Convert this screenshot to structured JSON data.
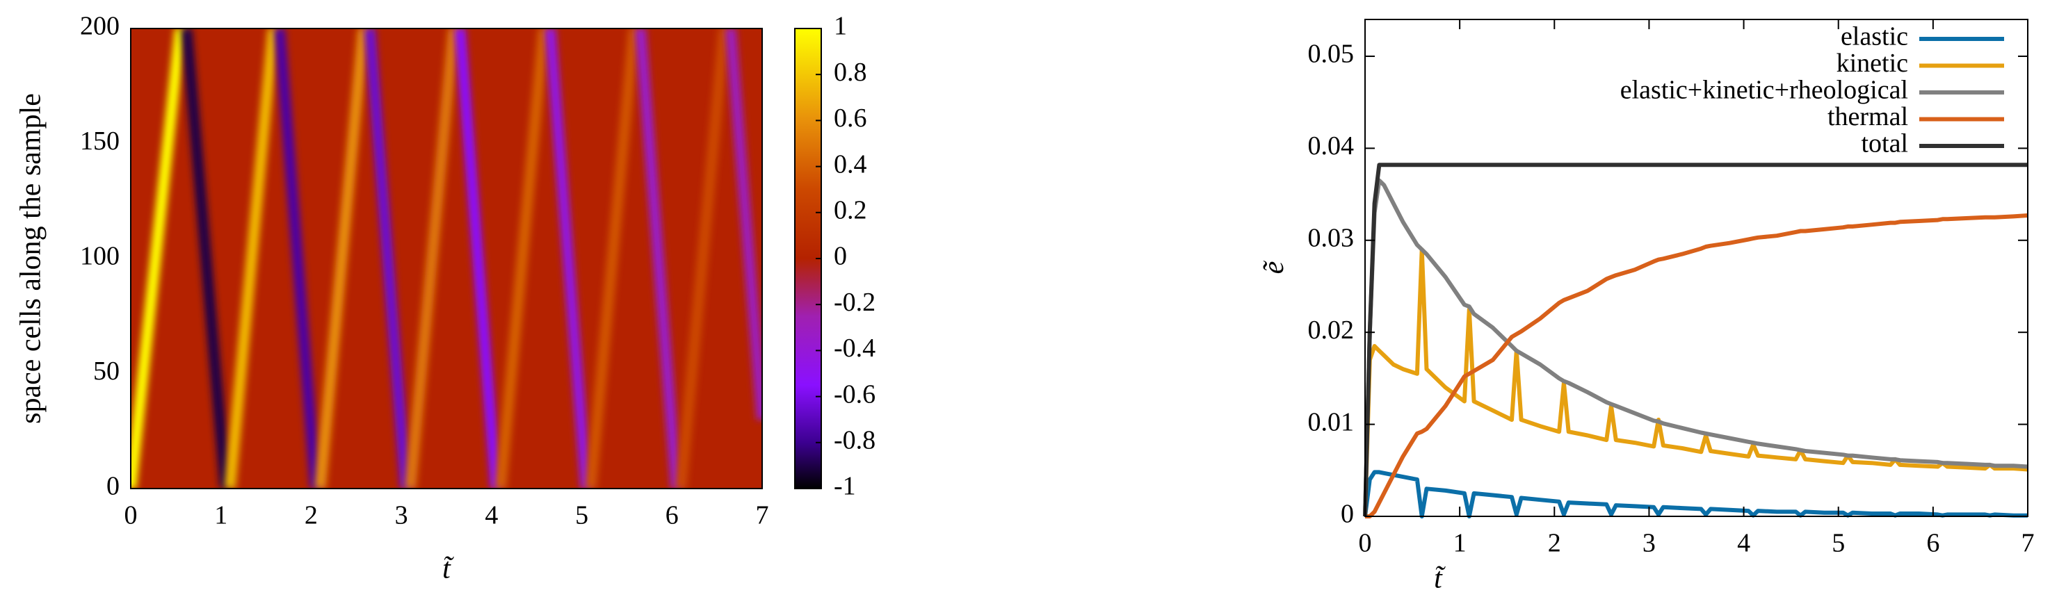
{
  "chart_data": [
    {
      "type": "heatmap",
      "xlabel": "t̃",
      "ylabel": "space cells along the sample",
      "xlim": [
        0,
        7
      ],
      "ylim": [
        0,
        200
      ],
      "xticks": [
        0,
        1,
        2,
        3,
        4,
        5,
        6,
        7
      ],
      "yticks": [
        0,
        50,
        100,
        150,
        200
      ],
      "clim": [
        -1,
        1
      ],
      "cticks": [
        -1,
        -0.8,
        -0.6,
        -0.4,
        -0.2,
        0,
        0.2,
        0.4,
        0.6,
        0.8,
        1
      ],
      "colormap": [
        {
          "value": -1,
          "color": "#000000"
        },
        {
          "value": -0.8,
          "color": "#3c0090"
        },
        {
          "value": -0.55,
          "color": "#8a10ff"
        },
        {
          "value": -0.25,
          "color": "#a020b0"
        },
        {
          "value": 0,
          "color": "#b42200"
        },
        {
          "value": 0.3,
          "color": "#cc4800"
        },
        {
          "value": 0.6,
          "color": "#e8900a"
        },
        {
          "value": 1,
          "color": "#ffff00"
        }
      ],
      "background_value": 0,
      "fronts": [
        {
          "x": [
            0,
            0.55
          ],
          "y": [
            0,
            200
          ],
          "value": 1
        },
        {
          "x": [
            0.62,
            1.05
          ],
          "y": [
            200,
            0
          ],
          "value": -0.9
        },
        {
          "x": [
            1.1,
            1.58
          ],
          "y": [
            0,
            200
          ],
          "value": 0.75
        },
        {
          "x": [
            1.65,
            2.05
          ],
          "y": [
            200,
            0
          ],
          "value": -0.75
        },
        {
          "x": [
            2.1,
            2.58
          ],
          "y": [
            0,
            200
          ],
          "value": 0.6
        },
        {
          "x": [
            2.65,
            3.05
          ],
          "y": [
            200,
            0
          ],
          "value": -0.65
        },
        {
          "x": [
            3.1,
            3.58
          ],
          "y": [
            0,
            200
          ],
          "value": 0.5
        },
        {
          "x": [
            3.65,
            4.05
          ],
          "y": [
            200,
            0
          ],
          "value": -0.55
        },
        {
          "x": [
            4.1,
            4.58
          ],
          "y": [
            0,
            200
          ],
          "value": 0.4
        },
        {
          "x": [
            4.65,
            5.05
          ],
          "y": [
            200,
            0
          ],
          "value": -0.45
        },
        {
          "x": [
            5.1,
            5.58
          ],
          "y": [
            0,
            200
          ],
          "value": 0.35
        },
        {
          "x": [
            5.65,
            6.05
          ],
          "y": [
            200,
            0
          ],
          "value": -0.35
        },
        {
          "x": [
            6.1,
            6.58
          ],
          "y": [
            0,
            200
          ],
          "value": 0.3
        },
        {
          "x": [
            6.65,
            7.0
          ],
          "y": [
            200,
            30
          ],
          "value": -0.3
        }
      ]
    },
    {
      "type": "line",
      "xlabel": "t̃",
      "ylabel": "ẽ",
      "xlim": [
        0,
        7
      ],
      "ylim": [
        0,
        0.054
      ],
      "xticks": [
        0,
        1,
        2,
        3,
        4,
        5,
        6,
        7
      ],
      "yticks": [
        0,
        0.01,
        0.02,
        0.03,
        0.04,
        0.05
      ],
      "legend": "top right",
      "x": [
        0,
        0.05,
        0.1,
        0.15,
        0.2,
        0.3,
        0.4,
        0.55,
        0.6,
        0.65,
        0.85,
        1.05,
        1.1,
        1.15,
        1.35,
        1.55,
        1.6,
        1.65,
        1.85,
        2.05,
        2.1,
        2.15,
        2.35,
        2.55,
        2.6,
        2.65,
        2.85,
        3.05,
        3.1,
        3.15,
        3.35,
        3.55,
        3.6,
        3.65,
        3.85,
        4.05,
        4.1,
        4.15,
        4.35,
        4.55,
        4.6,
        4.65,
        4.85,
        5.05,
        5.1,
        5.15,
        5.35,
        5.55,
        5.6,
        5.65,
        5.85,
        6.05,
        6.1,
        6.15,
        6.35,
        6.55,
        6.6,
        6.65,
        6.85,
        7.0
      ],
      "series": [
        {
          "name": "elastic",
          "color": "#0b6fa8",
          "values": [
            0,
            0.004,
            0.0048,
            0.0048,
            0.0047,
            0.0045,
            0.0043,
            0.004,
            0,
            0.003,
            0.0028,
            0.0025,
            0,
            0.0025,
            0.0023,
            0.0021,
            0.0002,
            0.002,
            0.0018,
            0.0016,
            0.0002,
            0.0015,
            0.0014,
            0.0013,
            0.0002,
            0.0012,
            0.0011,
            0.001,
            0.0002,
            0.001,
            0.0009,
            0.0008,
            0.0002,
            0.0008,
            0.0007,
            0.0006,
            0.0001,
            0.0006,
            0.0005,
            0.0005,
            0.0001,
            0.0005,
            0.0004,
            0.0004,
            0.0001,
            0.0004,
            0.0003,
            0.0003,
            0.0001,
            0.0003,
            0.0003,
            0.0002,
            0.0001,
            0.0002,
            0.0002,
            0.0002,
            0.0001,
            0.0002,
            0.0001,
            0.0001
          ]
        },
        {
          "name": "kinetic",
          "color": "#e6a010",
          "values": [
            0,
            0.017,
            0.0185,
            0.018,
            0.0175,
            0.0165,
            0.016,
            0.0155,
            0.029,
            0.016,
            0.014,
            0.0125,
            0.0225,
            0.0125,
            0.0115,
            0.0105,
            0.018,
            0.0105,
            0.0098,
            0.0092,
            0.0145,
            0.0092,
            0.0088,
            0.0083,
            0.012,
            0.0083,
            0.008,
            0.0076,
            0.0105,
            0.0077,
            0.0074,
            0.007,
            0.0088,
            0.0071,
            0.0068,
            0.0065,
            0.0078,
            0.0066,
            0.0064,
            0.0062,
            0.0072,
            0.0062,
            0.006,
            0.0058,
            0.0066,
            0.0059,
            0.0058,
            0.0056,
            0.0062,
            0.0056,
            0.0055,
            0.0054,
            0.0058,
            0.0054,
            0.0053,
            0.0052,
            0.0056,
            0.0052,
            0.0052,
            0.0051
          ]
        },
        {
          "name": "elastic+kinetic+rheological",
          "color": "#808080",
          "values": [
            0,
            0.02,
            0.033,
            0.0365,
            0.036,
            0.034,
            0.032,
            0.0295,
            0.029,
            0.0285,
            0.026,
            0.023,
            0.0228,
            0.022,
            0.0205,
            0.0185,
            0.018,
            0.0177,
            0.0165,
            0.015,
            0.0147,
            0.0145,
            0.0135,
            0.0124,
            0.0122,
            0.012,
            0.0112,
            0.0104,
            0.0103,
            0.0101,
            0.0096,
            0.0091,
            0.009,
            0.0089,
            0.0085,
            0.0081,
            0.008,
            0.0079,
            0.0076,
            0.0073,
            0.0072,
            0.0071,
            0.0069,
            0.0067,
            0.0066,
            0.0066,
            0.0064,
            0.0062,
            0.0062,
            0.0061,
            0.006,
            0.0059,
            0.0058,
            0.0058,
            0.0057,
            0.0056,
            0.0056,
            0.0055,
            0.0055,
            0.0054
          ]
        },
        {
          "name": "thermal",
          "color": "#d8601a",
          "values": [
            0,
            0,
            0.0005,
            0.0015,
            0.0025,
            0.0045,
            0.0065,
            0.009,
            0.0092,
            0.0095,
            0.012,
            0.0152,
            0.0155,
            0.0158,
            0.017,
            0.0195,
            0.0198,
            0.0201,
            0.0215,
            0.0232,
            0.0235,
            0.0237,
            0.0245,
            0.0258,
            0.026,
            0.0262,
            0.0268,
            0.0277,
            0.0279,
            0.028,
            0.0285,
            0.0291,
            0.0293,
            0.0294,
            0.0297,
            0.0301,
            0.0302,
            0.0303,
            0.0305,
            0.0309,
            0.031,
            0.031,
            0.0312,
            0.0314,
            0.0315,
            0.0315,
            0.0317,
            0.0319,
            0.0319,
            0.032,
            0.0321,
            0.0322,
            0.0323,
            0.0323,
            0.0324,
            0.0325,
            0.0325,
            0.0325,
            0.0326,
            0.0327
          ]
        },
        {
          "name": "total",
          "color": "#303030",
          "values": [
            0,
            0.02,
            0.034,
            0.0382,
            0.0382,
            0.0382,
            0.0382,
            0.0382,
            0.0382,
            0.0382,
            0.0382,
            0.0382,
            0.0382,
            0.0382,
            0.0382,
            0.0382,
            0.0382,
            0.0382,
            0.0382,
            0.0382,
            0.0382,
            0.0382,
            0.0382,
            0.0382,
            0.0382,
            0.0382,
            0.0382,
            0.0382,
            0.0382,
            0.0382,
            0.0382,
            0.0382,
            0.0382,
            0.0382,
            0.0382,
            0.0382,
            0.0382,
            0.0382,
            0.0382,
            0.0382,
            0.0382,
            0.0382,
            0.0382,
            0.0382,
            0.0382,
            0.0382,
            0.0382,
            0.0382,
            0.0382,
            0.0382,
            0.0382,
            0.0382,
            0.0382,
            0.0382,
            0.0382,
            0.0382,
            0.0382,
            0.0382,
            0.0382,
            0.0382
          ]
        }
      ]
    }
  ]
}
